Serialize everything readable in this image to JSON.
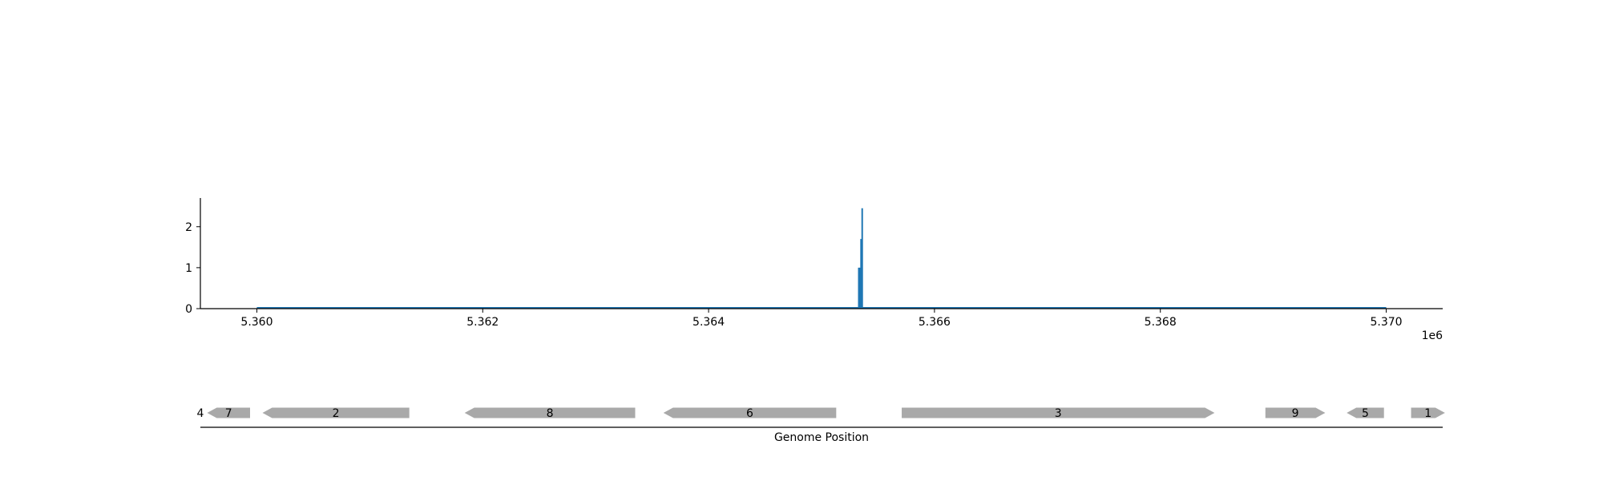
{
  "chart_data": [
    {
      "type": "area",
      "xlim": [
        5359500,
        5370500
      ],
      "ylim": [
        0,
        2.7
      ],
      "xticks": [
        5360000,
        5362000,
        5364000,
        5366000,
        5368000,
        5370000
      ],
      "xtick_labels": [
        "5.360",
        "5.362",
        "5.364",
        "5.366",
        "5.368",
        "5.370"
      ],
      "yticks": [
        0,
        1,
        2
      ],
      "ytick_labels": [
        "0",
        "1",
        "2"
      ],
      "offset_label": "1e6",
      "data_range": [
        5360000,
        5370000
      ],
      "series": [
        {
          "color": "#1f77b4",
          "spikes": [
            {
              "x": 5365330,
              "y": 1.0
            },
            {
              "x": 5365340,
              "y": 1.0
            },
            {
              "x": 5365350,
              "y": 1.7
            },
            {
              "x": 5365360,
              "y": 2.45
            }
          ]
        }
      ],
      "grid": false
    },
    {
      "type": "gene-track",
      "xlabel": "Genome Position",
      "xlim": [
        5359500,
        5370500
      ],
      "genes": [
        {
          "label": "4",
          "start": 5359500,
          "end": 5359500,
          "strand": "+"
        },
        {
          "label": "7",
          "start": 5359560,
          "end": 5359940,
          "strand": "-"
        },
        {
          "label": "2",
          "start": 5360050,
          "end": 5361350,
          "strand": "-"
        },
        {
          "label": "8",
          "start": 5361840,
          "end": 5363350,
          "strand": "-"
        },
        {
          "label": "6",
          "start": 5363600,
          "end": 5365130,
          "strand": "-"
        },
        {
          "label": "3",
          "start": 5365710,
          "end": 5368480,
          "strand": "+"
        },
        {
          "label": "9",
          "start": 5368930,
          "end": 5369460,
          "strand": "+"
        },
        {
          "label": "5",
          "start": 5369650,
          "end": 5369980,
          "strand": "-"
        },
        {
          "label": "1",
          "start": 5370220,
          "end": 5370520,
          "strand": "+"
        }
      ],
      "gene_color": "#a9a9a9"
    }
  ]
}
